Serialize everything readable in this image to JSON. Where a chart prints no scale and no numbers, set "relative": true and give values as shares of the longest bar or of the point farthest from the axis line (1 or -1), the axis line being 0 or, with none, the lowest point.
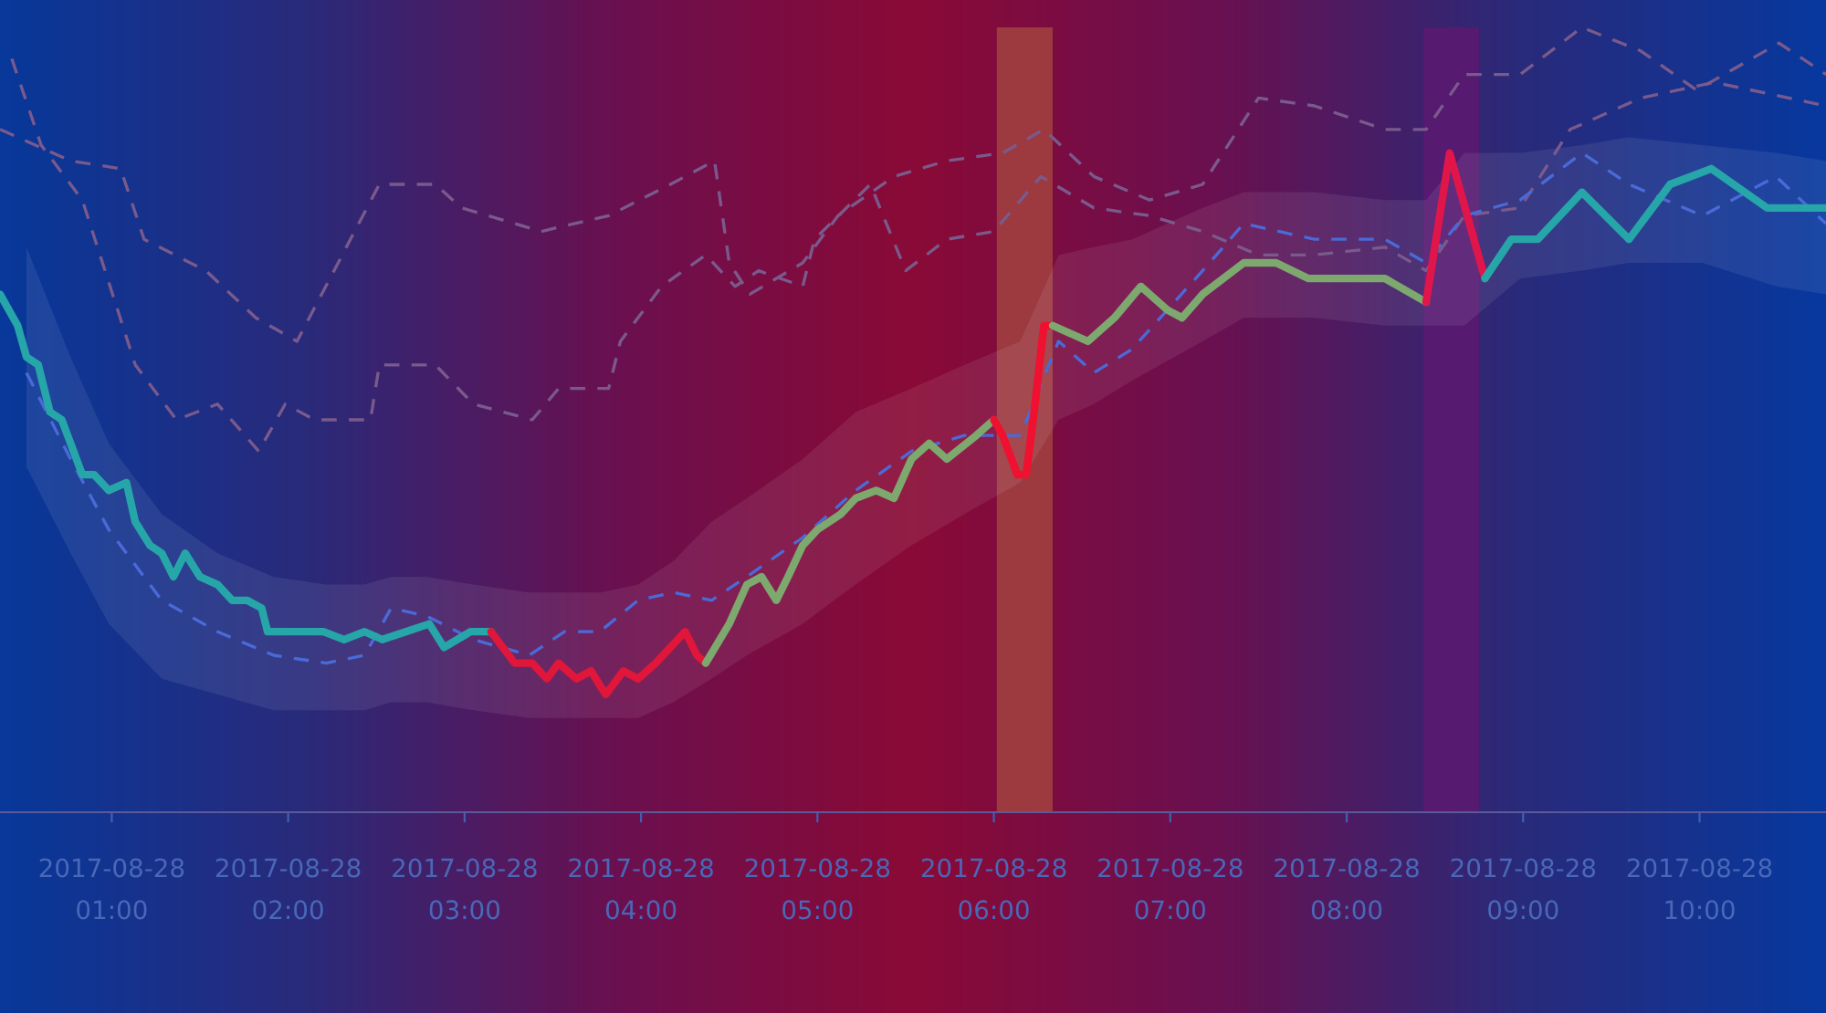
{
  "chart_data": {
    "type": "line",
    "relative": true,
    "xlim": [
      "2017-08-28T00:22",
      "2017-08-28T10:43"
    ],
    "xticks": [
      {
        "value": "2017-08-28T01:00",
        "label": "2017-08-28\n01:00"
      },
      {
        "value": "2017-08-28T02:00",
        "label": "2017-08-28\n02:00"
      },
      {
        "value": "2017-08-28T03:00",
        "label": "2017-08-28\n03:00"
      },
      {
        "value": "2017-08-28T04:00",
        "label": "2017-08-28\n04:00"
      },
      {
        "value": "2017-08-28T05:00",
        "label": "2017-08-28\n05:00"
      },
      {
        "value": "2017-08-28T06:00",
        "label": "2017-08-28\n06:00"
      },
      {
        "value": "2017-08-28T07:00",
        "label": "2017-08-28\n07:00"
      },
      {
        "value": "2017-08-28T08:00",
        "label": "2017-08-28\n08:00"
      },
      {
        "value": "2017-08-28T09:00",
        "label": "2017-08-28\n09:00"
      },
      {
        "value": "2017-08-28T10:00",
        "label": "2017-08-28\n10:00"
      }
    ],
    "tick_labels": "x",
    "bands": [
      {
        "axis": "x",
        "from": "2017-08-28T06:01",
        "to": "2017-08-28T06:20",
        "color": "#9c3a40"
      },
      {
        "axis": "x",
        "from": "2017-08-28T08:26",
        "to": "2017-08-28T08:45",
        "color": "#561a70"
      }
    ],
    "series": [
      {
        "color": "#7a5a8c",
        "line_style": "dashed",
        "x": [
          "2017-08-28T00:22",
          "2017-08-28T00:46",
          "2017-08-28T01:03",
          "2017-08-28T01:11",
          "2017-08-28T01:32",
          "2017-08-28T01:49",
          "2017-08-28T02:03",
          "2017-08-28T02:31",
          "2017-08-28T02:50",
          "2017-08-28T02:59",
          "2017-08-28T03:26",
          "2017-08-28T03:49",
          "2017-08-28T04:10",
          "2017-08-28T04:25",
          "2017-08-28T04:30",
          "2017-08-28T04:37",
          "2017-08-28T04:55",
          "2017-08-28T05:07",
          "2017-08-28T05:26",
          "2017-08-28T05:44",
          "2017-08-28T06:03",
          "2017-08-28T06:17",
          "2017-08-28T06:34",
          "2017-08-28T06:53",
          "2017-08-28T07:11",
          "2017-08-28T07:30",
          "2017-08-28T07:49",
          "2017-08-28T08:13",
          "2017-08-28T08:27",
          "2017-08-28T08:40",
          "2017-08-28T08:59",
          "2017-08-28T09:20",
          "2017-08-28T09:40",
          "2017-08-28T09:59",
          "2017-08-28T10:27",
          "2017-08-28T10:43"
        ],
        "values": [
          0.87,
          0.83,
          0.82,
          0.73,
          0.69,
          0.63,
          0.6,
          0.8,
          0.8,
          0.77,
          0.74,
          0.76,
          0.8,
          0.83,
          0.7,
          0.66,
          0.7,
          0.76,
          0.81,
          0.83,
          0.84,
          0.87,
          0.81,
          0.78,
          0.8,
          0.91,
          0.9,
          0.87,
          0.87,
          0.94,
          0.94,
          1.0,
          0.97,
          0.92,
          0.98,
          0.94
        ]
      },
      {
        "color": "#7a5a8c",
        "line_style": "dashed",
        "x": [
          "2017-08-28T00:26",
          "2017-08-28T00:36",
          "2017-08-28T00:50",
          "2017-08-28T01:08",
          "2017-08-28T01:22",
          "2017-08-28T01:36",
          "2017-08-28T01:50",
          "2017-08-28T01:59",
          "2017-08-28T02:09",
          "2017-08-28T02:28",
          "2017-08-28T02:31",
          "2017-08-28T02:50",
          "2017-08-28T03:03",
          "2017-08-28T03:23",
          "2017-08-28T03:32",
          "2017-08-28T03:49",
          "2017-08-28T03:53",
          "2017-08-28T04:07",
          "2017-08-28T04:22",
          "2017-08-28T04:32",
          "2017-08-28T04:40",
          "2017-08-28T04:55",
          "2017-08-28T04:59",
          "2017-08-28T05:18",
          "2017-08-28T05:30",
          "2017-08-28T05:44",
          "2017-08-28T06:00",
          "2017-08-28T06:16",
          "2017-08-28T06:34",
          "2017-08-28T06:53",
          "2017-08-28T07:11",
          "2017-08-28T07:30",
          "2017-08-28T07:49",
          "2017-08-28T08:13",
          "2017-08-28T08:27",
          "2017-08-28T08:40",
          "2017-08-28T08:59",
          "2017-08-28T09:16",
          "2017-08-28T09:40",
          "2017-08-28T10:05",
          "2017-08-28T10:43"
        ],
        "values": [
          0.96,
          0.85,
          0.78,
          0.57,
          0.5,
          0.52,
          0.46,
          0.52,
          0.5,
          0.5,
          0.57,
          0.57,
          0.52,
          0.5,
          0.54,
          0.54,
          0.6,
          0.67,
          0.71,
          0.67,
          0.69,
          0.67,
          0.73,
          0.8,
          0.69,
          0.73,
          0.74,
          0.81,
          0.77,
          0.76,
          0.74,
          0.71,
          0.71,
          0.72,
          0.69,
          0.76,
          0.77,
          0.87,
          0.91,
          0.93,
          0.9
        ]
      },
      {
        "color": "#4a6ad8",
        "line_style": "dashed",
        "x": [
          "2017-08-28T00:31",
          "2017-08-28T00:46",
          "2017-08-28T00:59",
          "2017-08-28T01:17",
          "2017-08-28T01:36",
          "2017-08-28T01:55",
          "2017-08-28T02:13",
          "2017-08-28T02:26",
          "2017-08-28T02:35",
          "2017-08-28T02:47",
          "2017-08-28T03:03",
          "2017-08-28T03:22",
          "2017-08-28T03:34",
          "2017-08-28T03:46",
          "2017-08-28T03:59",
          "2017-08-28T04:11",
          "2017-08-28T04:24",
          "2017-08-28T04:36",
          "2017-08-28T04:55",
          "2017-08-28T05:13",
          "2017-08-28T05:32",
          "2017-08-28T05:50",
          "2017-08-28T06:09",
          "2017-08-28T06:22",
          "2017-08-28T06:34",
          "2017-08-28T06:47",
          "2017-08-28T07:11",
          "2017-08-28T07:25",
          "2017-08-28T07:49",
          "2017-08-28T08:13",
          "2017-08-28T08:27",
          "2017-08-28T08:40",
          "2017-08-28T08:59",
          "2017-08-28T09:20",
          "2017-08-28T09:36",
          "2017-08-28T10:01",
          "2017-08-28T10:26",
          "2017-08-28T10:43"
        ],
        "values": [
          0.56,
          0.45,
          0.36,
          0.27,
          0.23,
          0.2,
          0.19,
          0.2,
          0.26,
          0.25,
          0.22,
          0.2,
          0.23,
          0.23,
          0.27,
          0.28,
          0.27,
          0.3,
          0.35,
          0.41,
          0.46,
          0.48,
          0.48,
          0.6,
          0.56,
          0.59,
          0.69,
          0.75,
          0.73,
          0.73,
          0.7,
          0.76,
          0.78,
          0.84,
          0.8,
          0.76,
          0.81,
          0.75
        ],
        "lower": [
          0.44,
          0.33,
          0.24,
          0.17,
          0.15,
          0.13,
          0.13,
          0.13,
          0.14,
          0.14,
          0.13,
          0.12,
          0.12,
          0.12,
          0.12,
          0.14,
          0.17,
          0.2,
          0.24,
          0.29,
          0.34,
          0.38,
          0.42,
          0.5,
          0.52,
          0.55,
          0.6,
          0.63,
          0.63,
          0.62,
          0.62,
          0.62,
          0.68,
          0.69,
          0.7,
          0.7,
          0.67,
          0.66
        ],
        "upper": [
          0.72,
          0.58,
          0.47,
          0.38,
          0.33,
          0.3,
          0.29,
          0.29,
          0.3,
          0.3,
          0.29,
          0.28,
          0.28,
          0.28,
          0.29,
          0.32,
          0.37,
          0.4,
          0.45,
          0.51,
          0.54,
          0.57,
          0.6,
          0.71,
          0.72,
          0.73,
          0.77,
          0.79,
          0.79,
          0.78,
          0.78,
          0.84,
          0.84,
          0.85,
          0.86,
          0.85,
          0.84,
          0.83
        ]
      },
      {
        "color": "#26a6a8",
        "x": [
          "2017-08-28T00:22",
          "2017-08-28T00:28",
          "2017-08-28T00:31",
          "2017-08-28T00:35",
          "2017-08-28T00:39",
          "2017-08-28T00:43",
          "2017-08-28T00:46",
          "2017-08-28T00:50",
          "2017-08-28T00:54",
          "2017-08-28T00:59",
          "2017-08-28T01:05",
          "2017-08-28T01:08",
          "2017-08-28T01:13",
          "2017-08-28T01:17",
          "2017-08-28T01:21",
          "2017-08-28T01:25",
          "2017-08-28T01:30",
          "2017-08-28T01:36",
          "2017-08-28T01:41",
          "2017-08-28T01:46",
          "2017-08-28T01:51",
          "2017-08-28T01:53",
          "2017-08-28T02:01",
          "2017-08-28T02:12",
          "2017-08-28T02:19",
          "2017-08-28T02:26",
          "2017-08-28T02:32",
          "2017-08-28T02:40",
          "2017-08-28T02:48",
          "2017-08-28T02:53",
          "2017-08-28T03:02",
          "2017-08-28T03:09"
        ],
        "values": [
          0.66,
          0.62,
          0.58,
          0.57,
          0.51,
          0.5,
          0.47,
          0.43,
          0.43,
          0.41,
          0.42,
          0.37,
          0.34,
          0.33,
          0.3,
          0.33,
          0.3,
          0.29,
          0.27,
          0.27,
          0.26,
          0.23,
          0.23,
          0.23,
          0.22,
          0.23,
          0.22,
          0.23,
          0.24,
          0.21,
          0.23,
          0.23
        ]
      },
      {
        "color": "#e0163a",
        "x": [
          "2017-08-28T03:09",
          "2017-08-28T03:17",
          "2017-08-28T03:23",
          "2017-08-28T03:28",
          "2017-08-28T03:32",
          "2017-08-28T03:38",
          "2017-08-28T03:43",
          "2017-08-28T03:48",
          "2017-08-28T03:54",
          "2017-08-28T03:59",
          "2017-08-28T04:05",
          "2017-08-28T04:10",
          "2017-08-28T04:15",
          "2017-08-28T04:19",
          "2017-08-28T04:22"
        ],
        "values": [
          0.23,
          0.19,
          0.19,
          0.17,
          0.19,
          0.17,
          0.18,
          0.15,
          0.18,
          0.17,
          0.19,
          0.21,
          0.23,
          0.2,
          0.19
        ]
      },
      {
        "color": "#7da86e",
        "x": [
          "2017-08-28T04:22",
          "2017-08-28T04:30",
          "2017-08-28T04:36",
          "2017-08-28T04:41",
          "2017-08-28T04:46",
          "2017-08-28T04:50",
          "2017-08-28T04:55",
          "2017-08-28T05:00",
          "2017-08-28T05:08",
          "2017-08-28T05:13",
          "2017-08-28T05:20",
          "2017-08-28T05:26",
          "2017-08-28T05:32",
          "2017-08-28T05:38",
          "2017-08-28T05:44",
          "2017-08-28T05:54",
          "2017-08-28T06:00"
        ],
        "values": [
          0.19,
          0.24,
          0.29,
          0.3,
          0.27,
          0.3,
          0.34,
          0.36,
          0.38,
          0.4,
          0.41,
          0.4,
          0.45,
          0.47,
          0.45,
          0.48,
          0.5
        ]
      },
      {
        "color": "#f01030",
        "x": [
          "2017-08-28T06:00",
          "2017-08-28T06:03",
          "2017-08-28T06:08",
          "2017-08-28T06:11",
          "2017-08-28T06:14",
          "2017-08-28T06:17",
          "2017-08-28T06:20"
        ],
        "values": [
          0.5,
          0.48,
          0.43,
          0.43,
          0.52,
          0.62,
          0.62
        ]
      },
      {
        "color": "#7da86e",
        "x": [
          "2017-08-28T06:20",
          "2017-08-28T06:32",
          "2017-08-28T06:41",
          "2017-08-28T06:50",
          "2017-08-28T06:59",
          "2017-08-28T07:04",
          "2017-08-28T07:11",
          "2017-08-28T07:25",
          "2017-08-28T07:36",
          "2017-08-28T07:47",
          "2017-08-28T08:13",
          "2017-08-28T08:27"
        ],
        "values": [
          0.62,
          0.6,
          0.63,
          0.67,
          0.64,
          0.63,
          0.66,
          0.7,
          0.7,
          0.68,
          0.68,
          0.65
        ]
      },
      {
        "color": "#e0164a",
        "x": [
          "2017-08-28T08:27",
          "2017-08-28T08:35",
          "2017-08-28T08:47"
        ],
        "values": [
          0.65,
          0.84,
          0.68
        ]
      },
      {
        "color": "#26a6a8",
        "x": [
          "2017-08-28T08:47",
          "2017-08-28T08:56",
          "2017-08-28T09:05",
          "2017-08-28T09:20",
          "2017-08-28T09:36",
          "2017-08-28T09:50",
          "2017-08-28T10:04",
          "2017-08-28T10:23",
          "2017-08-28T10:43"
        ],
        "values": [
          0.68,
          0.73,
          0.73,
          0.79,
          0.73,
          0.8,
          0.82,
          0.77,
          0.77
        ]
      }
    ]
  }
}
